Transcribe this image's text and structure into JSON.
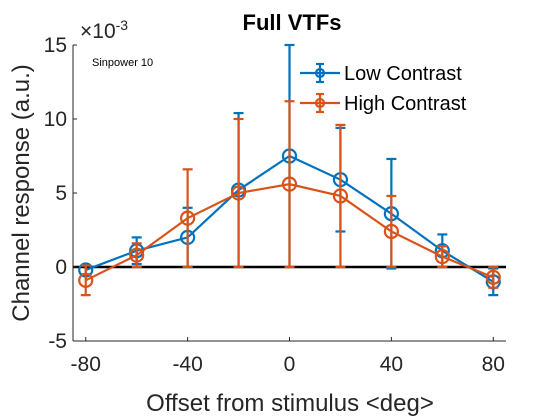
{
  "chart_data": {
    "type": "line",
    "title": "Full VTFs",
    "xlabel": "Offset from stimulus <deg>",
    "ylabel": "Channel response (a.u.)",
    "y_multiplier_label": "×10",
    "y_multiplier_exponent": "-3",
    "annotation": "Sinpower 10",
    "x": [
      -80,
      -60,
      -40,
      -20,
      0,
      20,
      40,
      60,
      80
    ],
    "xlim": [
      -85,
      85
    ],
    "ylim": [
      -5,
      15
    ],
    "xticks": [
      -80,
      -40,
      0,
      40,
      80
    ],
    "yticks": [
      -5,
      0,
      5,
      10,
      15
    ],
    "grid": false,
    "legend_position": "top-right",
    "zero_line": true,
    "series": [
      {
        "name": "Low Contrast",
        "color": "#0072BD",
        "values": [
          -0.2,
          1.1,
          2.0,
          5.2,
          7.5,
          5.9,
          3.6,
          1.1,
          -1.0
        ],
        "error": [
          0.3,
          0.9,
          2.0,
          5.2,
          7.5,
          3.5,
          3.7,
          1.1,
          0.9
        ]
      },
      {
        "name": "High Contrast",
        "color": "#D95319",
        "values": [
          -0.9,
          0.8,
          3.3,
          5.0,
          5.6,
          4.8,
          2.4,
          0.7,
          -0.7
        ],
        "error": [
          1.0,
          0.8,
          3.3,
          5.0,
          5.6,
          4.8,
          2.4,
          0.7,
          0.7
        ]
      }
    ]
  }
}
